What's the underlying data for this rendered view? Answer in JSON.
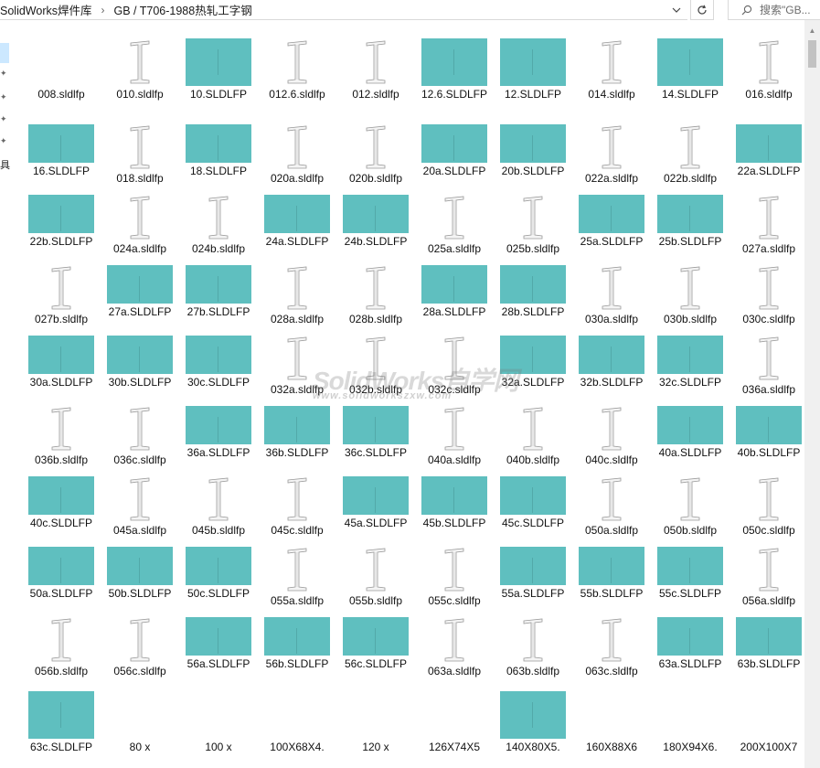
{
  "address_bar": {
    "crumbs": [
      "SolidWorks焊件库",
      "GB / T706-1988热轧工字钢"
    ],
    "separator": "›",
    "dropdown_icon": "chevron-down-icon",
    "refresh_icon": "refresh-icon"
  },
  "search": {
    "placeholder": "搜索\"GB..."
  },
  "nav": {
    "visible_char": "具"
  },
  "watermark": {
    "main": "SolidWorks自学网",
    "sub": "www.solidworkszxw.com"
  },
  "colors": {
    "thumb_teal": "#5fbfbf",
    "selection": "#cce8ff"
  },
  "files": [
    {
      "name": "008.sldlfp",
      "thumb": "none"
    },
    {
      "name": "010.sldlfp",
      "thumb": "beam"
    },
    {
      "name": "10.SLDLFP",
      "thumb": "teal"
    },
    {
      "name": "012.6.sldlfp",
      "thumb": "beam"
    },
    {
      "name": "012.sldlfp",
      "thumb": "beam"
    },
    {
      "name": "12.6.SLDLFP",
      "thumb": "teal"
    },
    {
      "name": "12.SLDLFP",
      "thumb": "teal"
    },
    {
      "name": "014.sldlfp",
      "thumb": "beam"
    },
    {
      "name": "14.SLDLFP",
      "thumb": "teal"
    },
    {
      "name": "016.sldlfp",
      "thumb": "beam"
    },
    {
      "name": "16.SLDLFP",
      "thumb": "teal"
    },
    {
      "name": "018.sldlfp",
      "thumb": "beam"
    },
    {
      "name": "18.SLDLFP",
      "thumb": "teal"
    },
    {
      "name": "020a.sldlfp",
      "thumb": "beam"
    },
    {
      "name": "020b.sldlfp",
      "thumb": "beam"
    },
    {
      "name": "20a.SLDLFP",
      "thumb": "teal"
    },
    {
      "name": "20b.SLDLFP",
      "thumb": "teal"
    },
    {
      "name": "022a.sldlfp",
      "thumb": "beam"
    },
    {
      "name": "022b.sldlfp",
      "thumb": "beam"
    },
    {
      "name": "22a.SLDLFP",
      "thumb": "teal"
    },
    {
      "name": "22b.SLDLFP",
      "thumb": "teal"
    },
    {
      "name": "024a.sldlfp",
      "thumb": "beam"
    },
    {
      "name": "024b.sldlfp",
      "thumb": "beam"
    },
    {
      "name": "24a.SLDLFP",
      "thumb": "teal"
    },
    {
      "name": "24b.SLDLFP",
      "thumb": "teal"
    },
    {
      "name": "025a.sldlfp",
      "thumb": "beam"
    },
    {
      "name": "025b.sldlfp",
      "thumb": "beam"
    },
    {
      "name": "25a.SLDLFP",
      "thumb": "teal"
    },
    {
      "name": "25b.SLDLFP",
      "thumb": "teal"
    },
    {
      "name": "027a.sldlfp",
      "thumb": "beam"
    },
    {
      "name": "027b.sldlfp",
      "thumb": "beam"
    },
    {
      "name": "27a.SLDLFP",
      "thumb": "teal"
    },
    {
      "name": "27b.SLDLFP",
      "thumb": "teal"
    },
    {
      "name": "028a.sldlfp",
      "thumb": "beam"
    },
    {
      "name": "028b.sldlfp",
      "thumb": "beam"
    },
    {
      "name": "28a.SLDLFP",
      "thumb": "teal"
    },
    {
      "name": "28b.SLDLFP",
      "thumb": "teal"
    },
    {
      "name": "030a.sldlfp",
      "thumb": "beam"
    },
    {
      "name": "030b.sldlfp",
      "thumb": "beam"
    },
    {
      "name": "030c.sldlfp",
      "thumb": "beam"
    },
    {
      "name": "30a.SLDLFP",
      "thumb": "teal"
    },
    {
      "name": "30b.SLDLFP",
      "thumb": "teal"
    },
    {
      "name": "30c.SLDLFP",
      "thumb": "teal"
    },
    {
      "name": "032a.sldlfp",
      "thumb": "beam"
    },
    {
      "name": "032b.sldlfp",
      "thumb": "beam"
    },
    {
      "name": "032c.sldlfp",
      "thumb": "beam"
    },
    {
      "name": "32a.SLDLFP",
      "thumb": "teal"
    },
    {
      "name": "32b.SLDLFP",
      "thumb": "teal"
    },
    {
      "name": "32c.SLDLFP",
      "thumb": "teal"
    },
    {
      "name": "036a.sldlfp",
      "thumb": "beam"
    },
    {
      "name": "036b.sldlfp",
      "thumb": "beam"
    },
    {
      "name": "036c.sldlfp",
      "thumb": "beam"
    },
    {
      "name": "36a.SLDLFP",
      "thumb": "teal"
    },
    {
      "name": "36b.SLDLFP",
      "thumb": "teal"
    },
    {
      "name": "36c.SLDLFP",
      "thumb": "teal"
    },
    {
      "name": "040a.sldlfp",
      "thumb": "beam"
    },
    {
      "name": "040b.sldlfp",
      "thumb": "beam"
    },
    {
      "name": "040c.sldlfp",
      "thumb": "beam"
    },
    {
      "name": "40a.SLDLFP",
      "thumb": "teal"
    },
    {
      "name": "40b.SLDLFP",
      "thumb": "teal"
    },
    {
      "name": "40c.SLDLFP",
      "thumb": "teal"
    },
    {
      "name": "045a.sldlfp",
      "thumb": "beam"
    },
    {
      "name": "045b.sldlfp",
      "thumb": "beam"
    },
    {
      "name": "045c.sldlfp",
      "thumb": "beam"
    },
    {
      "name": "45a.SLDLFP",
      "thumb": "teal"
    },
    {
      "name": "45b.SLDLFP",
      "thumb": "teal"
    },
    {
      "name": "45c.SLDLFP",
      "thumb": "teal"
    },
    {
      "name": "050a.sldlfp",
      "thumb": "beam"
    },
    {
      "name": "050b.sldlfp",
      "thumb": "beam"
    },
    {
      "name": "050c.sldlfp",
      "thumb": "beam"
    },
    {
      "name": "50a.SLDLFP",
      "thumb": "teal"
    },
    {
      "name": "50b.SLDLFP",
      "thumb": "teal"
    },
    {
      "name": "50c.SLDLFP",
      "thumb": "teal"
    },
    {
      "name": "055a.sldlfp",
      "thumb": "beam"
    },
    {
      "name": "055b.sldlfp",
      "thumb": "beam"
    },
    {
      "name": "055c.sldlfp",
      "thumb": "beam"
    },
    {
      "name": "55a.SLDLFP",
      "thumb": "teal"
    },
    {
      "name": "55b.SLDLFP",
      "thumb": "teal"
    },
    {
      "name": "55c.SLDLFP",
      "thumb": "teal"
    },
    {
      "name": "056a.sldlfp",
      "thumb": "beam"
    },
    {
      "name": "056b.sldlfp",
      "thumb": "beam"
    },
    {
      "name": "056c.sldlfp",
      "thumb": "beam"
    },
    {
      "name": "56a.SLDLFP",
      "thumb": "teal"
    },
    {
      "name": "56b.SLDLFP",
      "thumb": "teal"
    },
    {
      "name": "56c.SLDLFP",
      "thumb": "teal"
    },
    {
      "name": "063a.sldlfp",
      "thumb": "beam"
    },
    {
      "name": "063b.sldlfp",
      "thumb": "beam"
    },
    {
      "name": "063c.sldlfp",
      "thumb": "beam"
    },
    {
      "name": "63a.SLDLFP",
      "thumb": "teal"
    },
    {
      "name": "63b.SLDLFP",
      "thumb": "teal"
    },
    {
      "name": "63c.SLDLFP",
      "thumb": "teal"
    },
    {
      "name": "80 x",
      "thumb": "none"
    },
    {
      "name": "100 x",
      "thumb": "none"
    },
    {
      "name": "100X68X4.",
      "thumb": "none"
    },
    {
      "name": "120 x",
      "thumb": "none"
    },
    {
      "name": "126X74X5",
      "thumb": "none"
    },
    {
      "name": "140X80X5.",
      "thumb": "teal"
    },
    {
      "name": "160X88X6",
      "thumb": "none"
    },
    {
      "name": "180X94X6.",
      "thumb": "none"
    },
    {
      "name": "200X100X7",
      "thumb": "none"
    }
  ]
}
